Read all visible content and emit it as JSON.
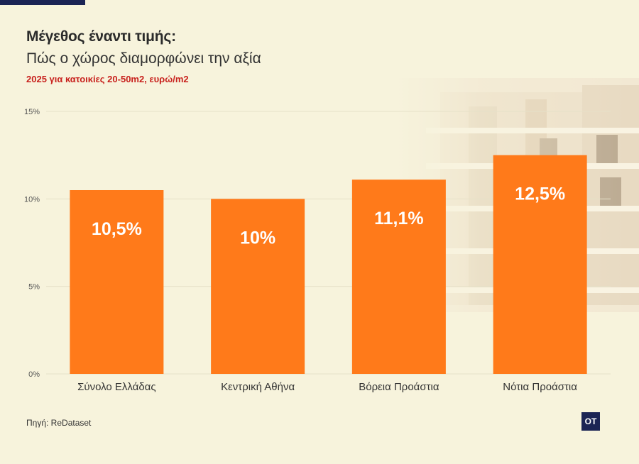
{
  "header": {
    "title": "Μέγεθος έναντι τιμής:",
    "subtitle": "Πώς ο χώρος διαμορφώνει την αξία",
    "note": "2025 για κατοικίες 20-50m2, ευρώ/m2"
  },
  "footer": {
    "source": "Πηγή: ReDataset",
    "logo": "OT"
  },
  "colors": {
    "bar": "#ff7a1a",
    "grid": "#e6e1c8",
    "label": "#ffffff"
  },
  "chart_data": {
    "type": "bar",
    "categories": [
      "Σύνολο Ελλάδας",
      "Κεντρική Αθήνα",
      "Βόρεια Προάστια",
      "Νότια Προάστια"
    ],
    "values": [
      10.5,
      10,
      11.1,
      12.5
    ],
    "data_labels": [
      "10,5%",
      "10%",
      "11,1%",
      "12,5%"
    ],
    "yticks": [
      "0%",
      "5%",
      "10%",
      "15%"
    ],
    "ytick_values": [
      0,
      5,
      10,
      15
    ],
    "ylim": [
      0,
      15
    ],
    "grid": true
  }
}
